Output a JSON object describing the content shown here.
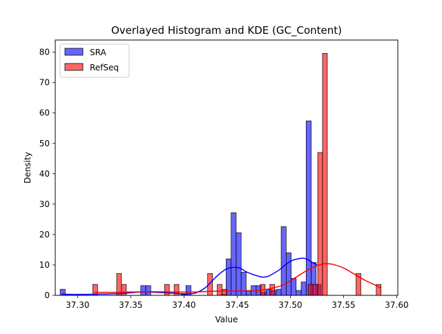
{
  "chart_data": {
    "type": "histogram",
    "title": "Overlayed Histogram and KDE (GC_Content)",
    "xlabel": "Value",
    "ylabel": "Density",
    "xlim": [
      37.279,
      37.601
    ],
    "ylim": [
      0,
      84
    ],
    "x_ticks": [
      37.3,
      37.35,
      37.4,
      37.45,
      37.5,
      37.55,
      37.6
    ],
    "x_tick_labels": [
      "37.30",
      "37.35",
      "37.40",
      "37.45",
      "37.50",
      "37.55",
      "37.60"
    ],
    "y_ticks": [
      0,
      10,
      20,
      30,
      40,
      50,
      60,
      70,
      80
    ],
    "y_tick_labels": [
      "0",
      "10",
      "20",
      "30",
      "40",
      "50",
      "60",
      "70",
      "80"
    ],
    "legend_position": "upper-left",
    "grid": false,
    "series": [
      {
        "name": "SRA",
        "color": "#0000ff",
        "kde_color": "#0000ff",
        "bin_width": 0.0047,
        "bins": [
          {
            "x": 37.286,
            "y": 2.0
          },
          {
            "x": 37.2907,
            "y": 0.3
          },
          {
            "x": 37.3617,
            "y": 3.2
          },
          {
            "x": 37.3664,
            "y": 3.2
          },
          {
            "x": 37.3995,
            "y": 0.3
          },
          {
            "x": 37.4042,
            "y": 3.2
          },
          {
            "x": 37.4373,
            "y": 0.3
          },
          {
            "x": 37.442,
            "y": 12.0
          },
          {
            "x": 37.4467,
            "y": 27.2
          },
          {
            "x": 37.4514,
            "y": 20.6
          },
          {
            "x": 37.4561,
            "y": 7.6
          },
          {
            "x": 37.4608,
            "y": 1.6
          },
          {
            "x": 37.4655,
            "y": 3.2
          },
          {
            "x": 37.4702,
            "y": 3.2
          },
          {
            "x": 37.4749,
            "y": 1.0
          },
          {
            "x": 37.4796,
            "y": 2.0
          },
          {
            "x": 37.4843,
            "y": 1.6
          },
          {
            "x": 37.489,
            "y": 2.0
          },
          {
            "x": 37.4937,
            "y": 22.6
          },
          {
            "x": 37.4984,
            "y": 14.0
          },
          {
            "x": 37.5031,
            "y": 5.6
          },
          {
            "x": 37.5078,
            "y": 1.6
          },
          {
            "x": 37.5125,
            "y": 4.4
          },
          {
            "x": 37.5172,
            "y": 57.4
          },
          {
            "x": 37.5219,
            "y": 10.8
          },
          {
            "x": 37.5266,
            "y": 3.6
          }
        ],
        "kde": {
          "x": [
            37.285,
            37.3,
            37.32,
            37.34,
            37.36,
            37.38,
            37.4,
            37.41,
            37.42,
            37.43,
            37.44,
            37.45,
            37.455,
            37.46,
            37.47,
            37.475,
            37.48,
            37.49,
            37.5,
            37.51,
            37.515,
            37.52,
            37.525
          ],
          "y": [
            0.4,
            0.3,
            0.4,
            0.6,
            1.1,
            0.9,
            0.5,
            0.7,
            2.5,
            6.0,
            8.7,
            9.2,
            8.5,
            7.5,
            6.3,
            6.0,
            6.4,
            8.5,
            11.2,
            12.2,
            12.0,
            11.0,
            10.0
          ]
        }
      },
      {
        "name": "RefSeq",
        "color": "#ff0000",
        "kde_color": "#ff0000",
        "bin_width": 0.0045,
        "bins": [
          {
            "x": 37.3165,
            "y": 3.6
          },
          {
            "x": 37.339,
            "y": 7.2
          },
          {
            "x": 37.3435,
            "y": 3.6
          },
          {
            "x": 37.384,
            "y": 3.6
          },
          {
            "x": 37.393,
            "y": 3.6
          },
          {
            "x": 37.4245,
            "y": 7.2
          },
          {
            "x": 37.4335,
            "y": 3.6
          },
          {
            "x": 37.438,
            "y": 2.0
          },
          {
            "x": 37.474,
            "y": 3.6
          },
          {
            "x": 37.483,
            "y": 3.6
          },
          {
            "x": 37.519,
            "y": 3.6
          },
          {
            "x": 37.5235,
            "y": 3.6
          },
          {
            "x": 37.528,
            "y": 47.0
          },
          {
            "x": 37.5325,
            "y": 79.6
          },
          {
            "x": 37.564,
            "y": 7.2
          },
          {
            "x": 37.583,
            "y": 3.6
          }
        ],
        "kde": {
          "x": [
            37.316,
            37.33,
            37.35,
            37.37,
            37.39,
            37.41,
            37.43,
            37.45,
            37.47,
            37.49,
            37.5,
            37.51,
            37.52,
            37.53,
            37.535,
            37.54,
            37.55,
            37.56,
            37.57,
            37.585
          ],
          "y": [
            1.0,
            1.0,
            1.1,
            1.2,
            1.1,
            1.1,
            1.4,
            1.4,
            1.6,
            3.0,
            4.8,
            7.0,
            9.0,
            10.3,
            10.4,
            10.2,
            9.0,
            7.0,
            5.0,
            2.5
          ]
        }
      }
    ]
  }
}
